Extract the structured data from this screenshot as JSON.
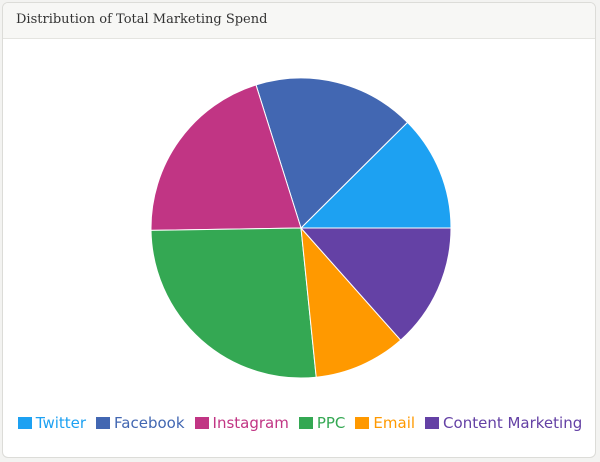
{
  "card": {
    "title": "Distribution of Total Marketing Spend"
  },
  "chart_data": {
    "type": "pie",
    "categories": [
      "Twitter",
      "Facebook",
      "Instagram",
      "PPC",
      "Email",
      "Content Marketing"
    ],
    "values": [
      12.5,
      17.5,
      20.5,
      26.5,
      10.0,
      13.5
    ],
    "colors": [
      "#1da1f2",
      "#4267b2",
      "#c13584",
      "#34a853",
      "#ff9900",
      "#6441a5"
    ],
    "start_angle_deg": 0,
    "direction": "counterclockwise",
    "legend_position": "bottom"
  }
}
